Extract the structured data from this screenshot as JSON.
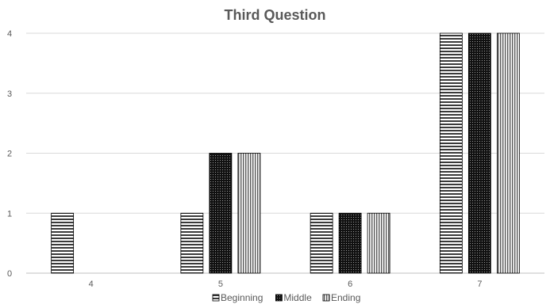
{
  "chart_data": {
    "type": "bar",
    "title": "Third Question",
    "xlabel": "",
    "ylabel": "",
    "categories": [
      "4",
      "5",
      "6",
      "7"
    ],
    "series": [
      {
        "name": "Beginning",
        "values": [
          1,
          1,
          1,
          4
        ],
        "pattern": "horizontal-stripes"
      },
      {
        "name": "Middle",
        "values": [
          0,
          2,
          1,
          4
        ],
        "pattern": "dense-dots"
      },
      {
        "name": "Ending",
        "values": [
          0,
          2,
          1,
          4
        ],
        "pattern": "vertical-stripes"
      }
    ],
    "ylim": [
      0,
      4
    ],
    "yticks": [
      "0",
      "1",
      "2",
      "3",
      "4"
    ],
    "grid": true,
    "legend_position": "bottom",
    "colors": {
      "text": "#595959",
      "grid": "#d9d9d9",
      "bar_edge": "#000000"
    }
  }
}
